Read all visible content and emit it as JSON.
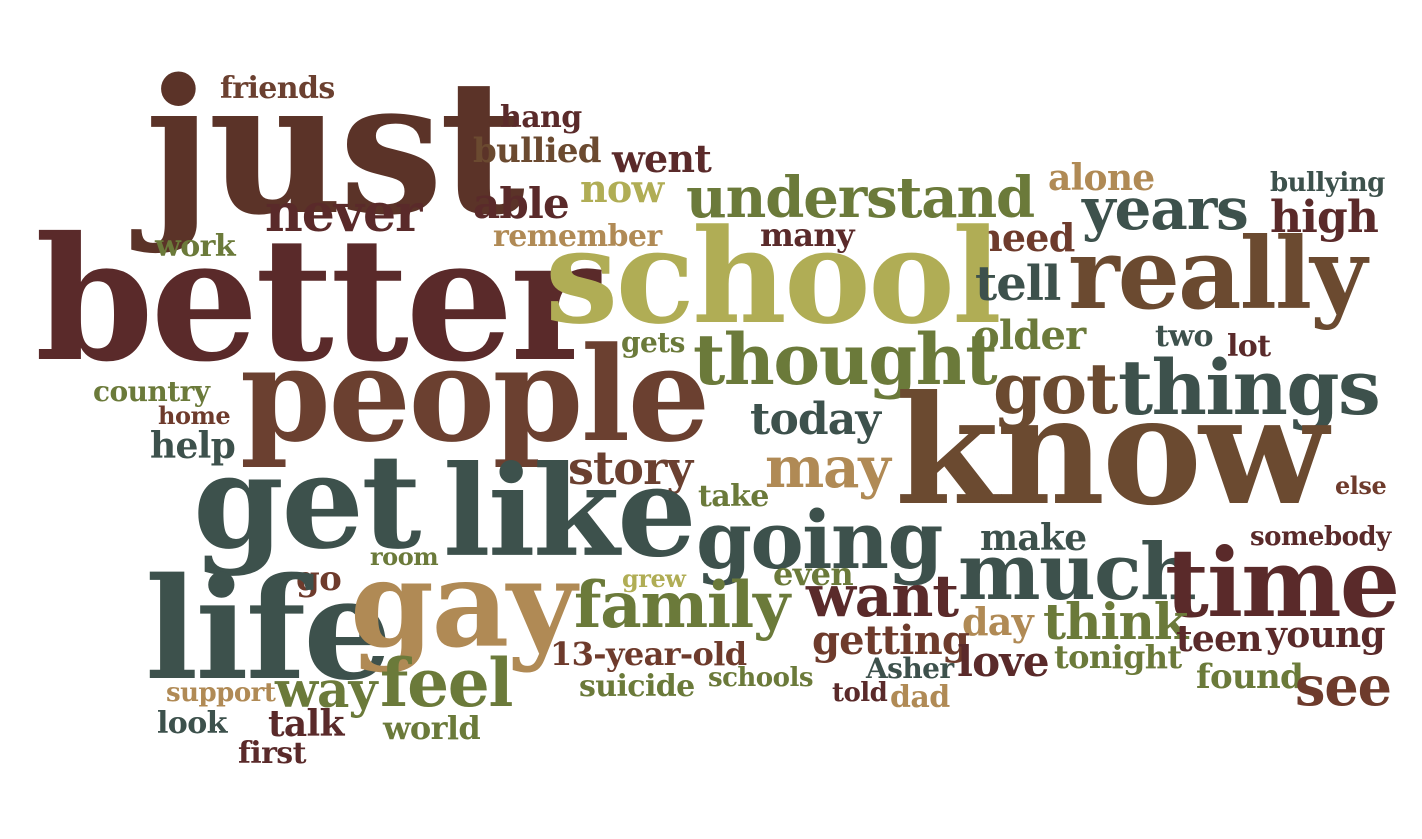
{
  "palette": {
    "maroon": "#5a2a2a",
    "brown": "#6b4030",
    "rust": "#6e3b2c",
    "slate": "#3d514c",
    "olive": "#6b7a3a",
    "khaki": "#b0ad55",
    "tan": "#b08a55"
  },
  "words": [
    {
      "text": "just",
      "color": "#5b3328"
    },
    {
      "text": "friends",
      "color": "#6b4030"
    },
    {
      "text": "hang",
      "color": "#5a2a2a"
    },
    {
      "text": "bullied",
      "color": "#6b4a30"
    },
    {
      "text": "went",
      "color": "#5a2a2a"
    },
    {
      "text": "never",
      "color": "#5a2a2a"
    },
    {
      "text": "able",
      "color": "#5a2a2a"
    },
    {
      "text": "now",
      "color": "#b0ad55"
    },
    {
      "text": "understand",
      "color": "#6b7a3a"
    },
    {
      "text": "alone",
      "color": "#b08a55"
    },
    {
      "text": "bullying",
      "color": "#3d514c"
    },
    {
      "text": "years",
      "color": "#3d514c"
    },
    {
      "text": "high",
      "color": "#5a2a2a"
    },
    {
      "text": "work",
      "color": "#6b7a3a"
    },
    {
      "text": "remember",
      "color": "#b08a55"
    },
    {
      "text": "many",
      "color": "#5a2a2a"
    },
    {
      "text": "need",
      "color": "#6e3b2c"
    },
    {
      "text": "better",
      "color": "#5a2a2a"
    },
    {
      "text": "school",
      "color": "#b0ad55"
    },
    {
      "text": "tell",
      "color": "#3d514c"
    },
    {
      "text": "really",
      "color": "#6b4a30"
    },
    {
      "text": "older",
      "color": "#6b7a3a"
    },
    {
      "text": "two",
      "color": "#3d514c"
    },
    {
      "text": "lot",
      "color": "#5a2a2a"
    },
    {
      "text": "gets",
      "color": "#6b7a3a"
    },
    {
      "text": "thought",
      "color": "#6b7a3a"
    },
    {
      "text": "got",
      "color": "#6b4a30"
    },
    {
      "text": "things",
      "color": "#3d514c"
    },
    {
      "text": "country",
      "color": "#6b7a3a"
    },
    {
      "text": "people",
      "color": "#6b4030"
    },
    {
      "text": "home",
      "color": "#6e3b2c"
    },
    {
      "text": "today",
      "color": "#3d514c"
    },
    {
      "text": "help",
      "color": "#3d514c"
    },
    {
      "text": "know",
      "color": "#6b4a30"
    },
    {
      "text": "story",
      "color": "#6b4030"
    },
    {
      "text": "may",
      "color": "#b08a55"
    },
    {
      "text": "get",
      "color": "#3d514c"
    },
    {
      "text": "like",
      "color": "#3d514c"
    },
    {
      "text": "take",
      "color": "#6b7a3a"
    },
    {
      "text": "else",
      "color": "#6e3b2c"
    },
    {
      "text": "going",
      "color": "#3d514c"
    },
    {
      "text": "make",
      "color": "#3d514c"
    },
    {
      "text": "somebody",
      "color": "#5a2a2a"
    },
    {
      "text": "room",
      "color": "#6b7a3a"
    },
    {
      "text": "grew",
      "color": "#b0ad55"
    },
    {
      "text": "even",
      "color": "#6b7a3a"
    },
    {
      "text": "much",
      "color": "#3d514c"
    },
    {
      "text": "time",
      "color": "#5a2a2a"
    },
    {
      "text": "go",
      "color": "#6e3b2c"
    },
    {
      "text": "life",
      "color": "#3d514c"
    },
    {
      "text": "gay",
      "color": "#b08a55"
    },
    {
      "text": "family",
      "color": "#6b7a3a"
    },
    {
      "text": "want",
      "color": "#5a2a2a"
    },
    {
      "text": "day",
      "color": "#b08a55"
    },
    {
      "text": "think",
      "color": "#6b7a3a"
    },
    {
      "text": "teen",
      "color": "#5a2a2a"
    },
    {
      "text": "young",
      "color": "#5a2a2a"
    },
    {
      "text": "getting",
      "color": "#6e3b2c"
    },
    {
      "text": "13-year-old",
      "color": "#6e3b2c"
    },
    {
      "text": "Asher",
      "color": "#3d514c"
    },
    {
      "text": "love",
      "color": "#5a2a2a"
    },
    {
      "text": "tonight",
      "color": "#6b7a3a"
    },
    {
      "text": "feel",
      "color": "#6b7a3a"
    },
    {
      "text": "way",
      "color": "#6b7a3a"
    },
    {
      "text": "support",
      "color": "#b08a55"
    },
    {
      "text": "suicide",
      "color": "#6b7a3a"
    },
    {
      "text": "schools",
      "color": "#6b7a3a"
    },
    {
      "text": "told",
      "color": "#5a2a2a"
    },
    {
      "text": "dad",
      "color": "#b08a55"
    },
    {
      "text": "found",
      "color": "#6b7a3a"
    },
    {
      "text": "see",
      "color": "#6e3b2c"
    },
    {
      "text": "look",
      "color": "#3d514c"
    },
    {
      "text": "talk",
      "color": "#5a2a2a"
    },
    {
      "text": "world",
      "color": "#6b7a3a"
    },
    {
      "text": "first",
      "color": "#5a2a2a"
    }
  ]
}
